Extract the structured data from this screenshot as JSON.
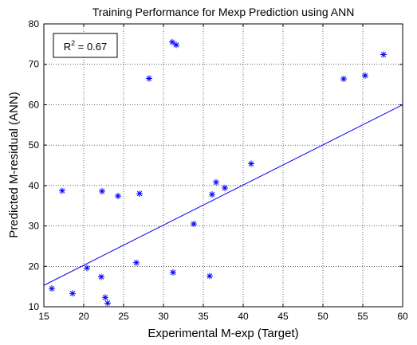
{
  "chart_data": {
    "type": "scatter",
    "title": "Training Performance for Mexp Prediction using ANN",
    "xlabel": "Experimental M-exp (Target)",
    "ylabel": "Predicted M-residual (ANN)",
    "xlim": [
      15,
      60
    ],
    "ylim": [
      10,
      80
    ],
    "xticks": [
      15,
      20,
      25,
      30,
      35,
      40,
      45,
      50,
      55,
      60
    ],
    "yticks": [
      10,
      20,
      30,
      40,
      50,
      60,
      70,
      80
    ],
    "grid": true,
    "annotation": {
      "prefix": "R",
      "superscript": "2",
      "suffix": " = 0.67"
    },
    "marker": "asterisk",
    "colors": {
      "points": "#0000ff",
      "fit_line": "#0000ff",
      "grid": "#000000"
    },
    "points": [
      {
        "x": 16.0,
        "y": 14.5
      },
      {
        "x": 17.3,
        "y": 38.7
      },
      {
        "x": 18.6,
        "y": 13.3
      },
      {
        "x": 20.4,
        "y": 19.6
      },
      {
        "x": 22.2,
        "y": 17.4
      },
      {
        "x": 22.3,
        "y": 38.6
      },
      {
        "x": 22.7,
        "y": 12.3
      },
      {
        "x": 23.0,
        "y": 10.9
      },
      {
        "x": 24.3,
        "y": 37.4
      },
      {
        "x": 26.6,
        "y": 20.9
      },
      {
        "x": 27.0,
        "y": 38.0
      },
      {
        "x": 28.2,
        "y": 66.5
      },
      {
        "x": 31.1,
        "y": 75.5
      },
      {
        "x": 31.2,
        "y": 18.5
      },
      {
        "x": 31.6,
        "y": 74.8
      },
      {
        "x": 33.8,
        "y": 30.5
      },
      {
        "x": 35.8,
        "y": 17.6
      },
      {
        "x": 36.1,
        "y": 37.8
      },
      {
        "x": 36.6,
        "y": 40.8
      },
      {
        "x": 37.7,
        "y": 39.4
      },
      {
        "x": 41.0,
        "y": 45.4
      },
      {
        "x": 52.6,
        "y": 66.4
      },
      {
        "x": 55.3,
        "y": 67.2
      },
      {
        "x": 57.6,
        "y": 72.4
      }
    ],
    "fit_line": {
      "x": [
        15,
        60
      ],
      "y": [
        15.3,
        60.0
      ]
    }
  }
}
